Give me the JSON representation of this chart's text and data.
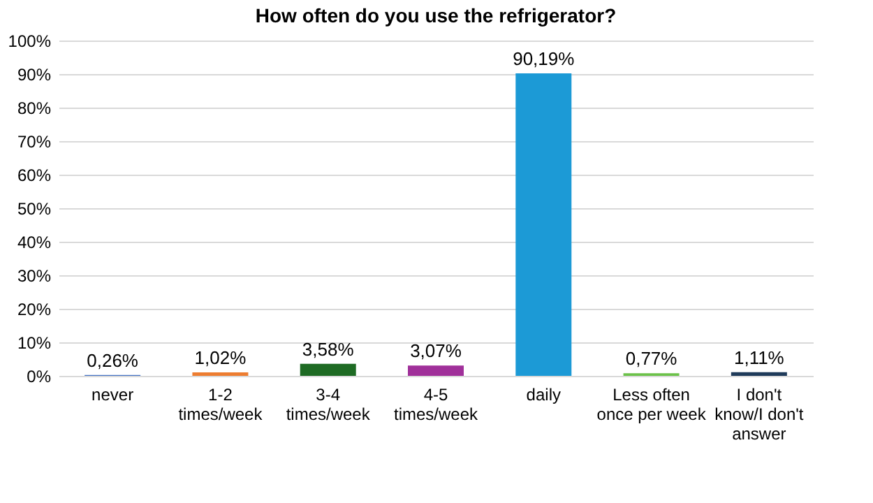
{
  "chart_data": {
    "type": "bar",
    "title": "How often do you use the refrigerator?",
    "categories": [
      "never",
      "1-2 times/week",
      "3-4 times/week",
      "4-5 times/week",
      "daily",
      "Less often once per week",
      "I don't know/I don't answer"
    ],
    "values": [
      0.26,
      1.02,
      3.58,
      3.07,
      90.19,
      0.77,
      1.11
    ],
    "value_labels": [
      "0,26%",
      "1,02%",
      "3,58%",
      "3,07%",
      "90,19%",
      "0,77%",
      "1,11%"
    ],
    "colors": [
      "#4472c4",
      "#ed7d31",
      "#1e6b24",
      "#a0309a",
      "#1c9ad6",
      "#6cc24a",
      "#1f3b5a"
    ],
    "ylim": [
      0,
      100
    ],
    "yticks": [
      {
        "value": 0,
        "label": "0%"
      },
      {
        "value": 10,
        "label": "10%"
      },
      {
        "value": 20,
        "label": "20%"
      },
      {
        "value": 30,
        "label": "30%"
      },
      {
        "value": 40,
        "label": "40%"
      },
      {
        "value": 50,
        "label": "50%"
      },
      {
        "value": 60,
        "label": "60%"
      },
      {
        "value": 70,
        "label": "70%"
      },
      {
        "value": 80,
        "label": "80%"
      },
      {
        "value": 90,
        "label": "90%"
      },
      {
        "value": 100,
        "label": "100%"
      }
    ],
    "grid": "y",
    "legend": false
  }
}
